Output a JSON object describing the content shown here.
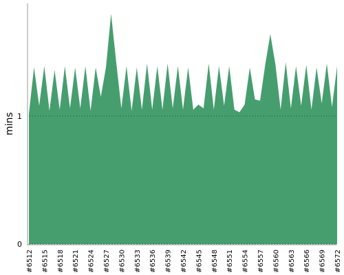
{
  "chart_data": {
    "type": "area",
    "y_label": "mins",
    "categories": [
      "#6512",
      null,
      null,
      "#6515",
      null,
      null,
      "#6518",
      null,
      null,
      "#6521",
      null,
      null,
      "#6524",
      null,
      null,
      "#6527",
      null,
      null,
      "#6530",
      null,
      null,
      "#6533",
      null,
      null,
      "#6536",
      null,
      null,
      "#6539",
      null,
      null,
      "#6542",
      null,
      null,
      "#6545",
      null,
      null,
      "#6548",
      null,
      null,
      "#6551",
      null,
      null,
      "#6554",
      null,
      null,
      "#6557",
      null,
      null,
      "#6560",
      null,
      null,
      "#6563",
      null,
      null,
      "#6566",
      null,
      null,
      "#6569",
      null,
      null,
      "#6572"
    ],
    "values": [
      1.02,
      1.38,
      1.08,
      1.39,
      1.04,
      1.36,
      1.05,
      1.39,
      1.06,
      1.38,
      1.06,
      1.39,
      1.04,
      1.38,
      1.15,
      1.38,
      1.8,
      1.42,
      1.06,
      1.39,
      1.04,
      1.38,
      1.05,
      1.41,
      1.05,
      1.39,
      1.05,
      1.41,
      1.06,
      1.39,
      1.05,
      1.38,
      1.05,
      1.09,
      1.06,
      1.41,
      1.05,
      1.39,
      1.08,
      1.39,
      1.05,
      1.03,
      1.09,
      1.38,
      1.13,
      1.12,
      1.4,
      1.64,
      1.4,
      1.05,
      1.42,
      1.06,
      1.39,
      1.08,
      1.4,
      1.05,
      1.38,
      1.1,
      1.41,
      1.07,
      1.39
    ],
    "color": "#469e6f",
    "ylim": [
      0,
      1.88
    ],
    "yticks": [
      0,
      1
    ],
    "grid": true
  }
}
